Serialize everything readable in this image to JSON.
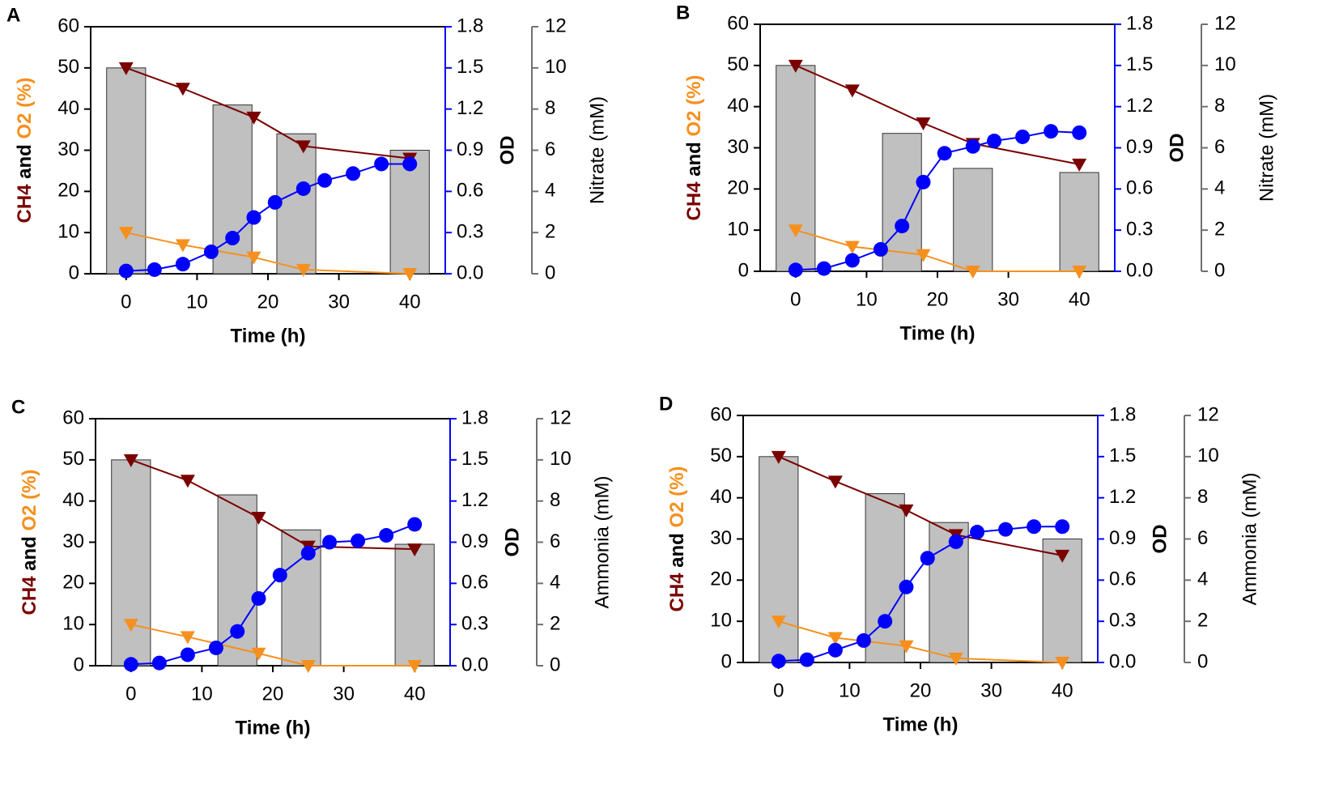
{
  "chart_data": [
    {
      "type": "combo",
      "label": "A",
      "xlabel": "Time (h)",
      "ylabel": [
        "CH4",
        "and",
        "O2 (%)"
      ],
      "ylabel_colors": [
        "#7a0000",
        "#000000",
        "#f5901e"
      ],
      "y2label": "OD",
      "y3label": "Nitrate (mM)",
      "y2color": "#0000ff",
      "y3color": "#707070",
      "xlim": [
        -5,
        45
      ],
      "xticks": [
        0,
        10,
        20,
        30,
        40
      ],
      "ylim": [
        0,
        60
      ],
      "yticks": [
        0,
        10,
        20,
        30,
        40,
        50,
        60
      ],
      "y2lim": [
        0,
        1.8
      ],
      "y2ticks": [
        {
          "value": 0,
          "label": "0.0"
        },
        0.3,
        0.6,
        0.9,
        1.2,
        1.5,
        1.8
      ],
      "y3lim": [
        0,
        12
      ],
      "y3ticks": [
        0,
        2,
        4,
        6,
        8,
        10,
        12
      ],
      "series": [
        {
          "type": "bar",
          "axis": "y3",
          "color": "#c0c0c0",
          "x": [
            0,
            15,
            24,
            40
          ],
          "values": [
            10,
            8.2,
            6.8,
            6.0
          ]
        },
        {
          "type": "line",
          "marker": "triangle-down",
          "axis": "y",
          "color": "#7a0000",
          "x": [
            0,
            8,
            18,
            25,
            40
          ],
          "values": [
            50,
            45,
            38,
            31,
            28
          ]
        },
        {
          "type": "line",
          "marker": "triangle-down",
          "axis": "y",
          "color": "#f5901e",
          "x": [
            0,
            8,
            18,
            25,
            40
          ],
          "values": [
            10,
            7,
            4,
            1,
            0
          ]
        },
        {
          "type": "line",
          "marker": "circle",
          "axis": "y2",
          "color": "#0000ff",
          "x": [
            0,
            4,
            8,
            12,
            15,
            18,
            21,
            25,
            28,
            32,
            36,
            40
          ],
          "values": [
            0.02,
            0.03,
            0.07,
            0.16,
            0.26,
            0.41,
            0.52,
            0.62,
            0.68,
            0.73,
            0.8,
            0.8
          ]
        }
      ]
    },
    {
      "type": "combo",
      "label": "B",
      "xlabel": "Time (h)",
      "ylabel": [
        "CH4",
        "and",
        "O2 (%)"
      ],
      "ylabel_colors": [
        "#7a0000",
        "#000000",
        "#f5901e"
      ],
      "y2label": "OD",
      "y3label": "Nitrate (mM)",
      "y2color": "#0000ff",
      "y3color": "#707070",
      "xlim": [
        -5,
        45
      ],
      "xticks": [
        0,
        10,
        20,
        30,
        40
      ],
      "ylim": [
        0,
        60
      ],
      "yticks": [
        0,
        10,
        20,
        30,
        40,
        50,
        60
      ],
      "y2lim": [
        0,
        1.8
      ],
      "y2ticks": [
        {
          "value": 0,
          "label": "0.0"
        },
        0.3,
        0.6,
        0.9,
        1.2,
        1.5,
        1.8
      ],
      "y3lim": [
        0,
        12
      ],
      "y3ticks": [
        0,
        2,
        4,
        6,
        8,
        10,
        12
      ],
      "series": [
        {
          "type": "bar",
          "axis": "y3",
          "color": "#c0c0c0",
          "x": [
            0,
            15,
            25,
            40
          ],
          "values": [
            10,
            6.7,
            5.0,
            4.8
          ]
        },
        {
          "type": "line",
          "marker": "triangle-down",
          "axis": "y",
          "color": "#7a0000",
          "x": [
            0,
            8,
            18,
            25,
            40
          ],
          "values": [
            50,
            44,
            36,
            31,
            26
          ]
        },
        {
          "type": "line",
          "marker": "triangle-down",
          "axis": "y",
          "color": "#f5901e",
          "x": [
            0,
            8,
            18,
            25,
            40
          ],
          "values": [
            10,
            6,
            4,
            0,
            0
          ]
        },
        {
          "type": "line",
          "marker": "circle",
          "axis": "y2",
          "color": "#0000ff",
          "x": [
            0,
            4,
            8,
            12,
            15,
            18,
            21,
            25,
            28,
            32,
            36,
            40
          ],
          "values": [
            0.01,
            0.02,
            0.08,
            0.16,
            0.33,
            0.65,
            0.86,
            0.91,
            0.95,
            0.98,
            1.02,
            1.01
          ]
        }
      ]
    },
    {
      "type": "combo",
      "label": "C",
      "xlabel": "Time (h)",
      "ylabel": [
        "CH4",
        "and",
        "O2 (%)"
      ],
      "ylabel_colors": [
        "#7a0000",
        "#000000",
        "#f5901e"
      ],
      "y2label": "OD",
      "y3label": "Ammonia (mM)",
      "y2color": "#0000ff",
      "y3color": "#707070",
      "xlim": [
        -5,
        45
      ],
      "xticks": [
        0,
        10,
        20,
        30,
        40
      ],
      "ylim": [
        0,
        60
      ],
      "yticks": [
        0,
        10,
        20,
        30,
        40,
        50,
        60
      ],
      "y2lim": [
        0,
        1.8
      ],
      "y2ticks": [
        {
          "value": 0,
          "label": "0.0"
        },
        0.3,
        0.6,
        0.9,
        1.2,
        1.5,
        1.8
      ],
      "y3lim": [
        0,
        12
      ],
      "y3ticks": [
        0,
        2,
        4,
        6,
        8,
        10,
        12
      ],
      "series": [
        {
          "type": "bar",
          "axis": "y3",
          "color": "#c0c0c0",
          "x": [
            0,
            15,
            24,
            40
          ],
          "values": [
            10,
            8.3,
            6.6,
            5.9
          ]
        },
        {
          "type": "line",
          "marker": "triangle-down",
          "axis": "y",
          "color": "#7a0000",
          "x": [
            0,
            8,
            18,
            25,
            40
          ],
          "values": [
            50,
            45,
            36,
            29,
            28.3
          ]
        },
        {
          "type": "line",
          "marker": "triangle-down",
          "axis": "y",
          "color": "#f5901e",
          "x": [
            0,
            8,
            18,
            25,
            40
          ],
          "values": [
            10,
            7,
            3,
            0,
            0
          ]
        },
        {
          "type": "line",
          "marker": "circle",
          "axis": "y2",
          "color": "#0000ff",
          "x": [
            0,
            4,
            8,
            12,
            15,
            18,
            21,
            25,
            28,
            32,
            36,
            40
          ],
          "values": [
            0.01,
            0.02,
            0.08,
            0.13,
            0.25,
            0.49,
            0.66,
            0.82,
            0.9,
            0.91,
            0.95,
            1.03
          ]
        }
      ]
    },
    {
      "type": "combo",
      "label": "D",
      "xlabel": "Time (h)",
      "ylabel": [
        "CH4",
        "and",
        "O2 (%)"
      ],
      "ylabel_colors": [
        "#7a0000",
        "#000000",
        "#f5901e"
      ],
      "y2label": "OD",
      "y3label": "Ammonia (mM)",
      "y2color": "#0000ff",
      "y3color": "#707070",
      "xlim": [
        -5,
        45
      ],
      "xticks": [
        0,
        10,
        20,
        30,
        40
      ],
      "ylim": [
        0,
        60
      ],
      "yticks": [
        0,
        10,
        20,
        30,
        40,
        50,
        60
      ],
      "y2lim": [
        0,
        1.8
      ],
      "y2ticks": [
        {
          "value": 0,
          "label": "0.0"
        },
        0.3,
        0.6,
        0.9,
        1.2,
        1.5,
        1.8
      ],
      "y3lim": [
        0,
        12
      ],
      "y3ticks": [
        0,
        2,
        4,
        6,
        8,
        10,
        12
      ],
      "series": [
        {
          "type": "bar",
          "axis": "y3",
          "color": "#c0c0c0",
          "x": [
            0,
            15,
            24,
            40
          ],
          "values": [
            10,
            8.2,
            6.8,
            6.0
          ]
        },
        {
          "type": "line",
          "marker": "triangle-down",
          "axis": "y",
          "color": "#7a0000",
          "x": [
            0,
            8,
            18,
            25,
            40
          ],
          "values": [
            50,
            44,
            37,
            31,
            26
          ]
        },
        {
          "type": "line",
          "marker": "triangle-down",
          "axis": "y",
          "color": "#f5901e",
          "x": [
            0,
            8,
            18,
            25,
            40
          ],
          "values": [
            10,
            6,
            4,
            1,
            0
          ]
        },
        {
          "type": "line",
          "marker": "circle",
          "axis": "y2",
          "color": "#0000ff",
          "x": [
            0,
            4,
            8,
            12,
            15,
            18,
            21,
            25,
            28,
            32,
            36,
            40
          ],
          "values": [
            0.01,
            0.02,
            0.09,
            0.16,
            0.3,
            0.55,
            0.76,
            0.88,
            0.95,
            0.97,
            0.99,
            0.99
          ]
        }
      ]
    }
  ]
}
